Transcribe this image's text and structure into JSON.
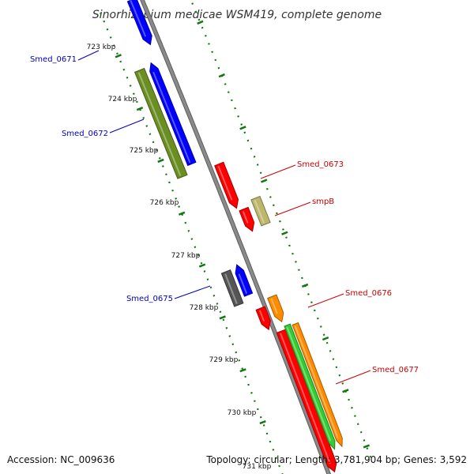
{
  "title": "Sinorhizobium medicae WSM419, complete genome",
  "footer": {
    "accession": "Accession: NC_009636",
    "summary": "Topology: circular; Length: 3,781,904 bp; Genes: 3,592"
  },
  "colors": {
    "backbone": "#8a8a8a",
    "tick": "#117711",
    "forward_label": "#0000bb",
    "reverse_label": "#cc0000"
  },
  "ticks": [
    {
      "label": "723 kbp"
    },
    {
      "label": "724 kbp"
    },
    {
      "label": "725 kbp"
    },
    {
      "label": "726 kbp"
    },
    {
      "label": "727 kbp"
    },
    {
      "label": "728 kbp"
    },
    {
      "label": "729 kbp"
    },
    {
      "label": "730 kbp"
    },
    {
      "label": "731 kbp"
    }
  ],
  "genes": [
    {
      "label": "Smed_0671",
      "strand": "forward",
      "color": "#0000ff"
    },
    {
      "label": "Smed_0672",
      "strand": "forward",
      "color": "#0000ff"
    },
    {
      "label": "",
      "strand": "forward",
      "color": "#6b8e23"
    },
    {
      "label": "Smed_0673",
      "strand": "reverse",
      "color": "#ff0000"
    },
    {
      "label": "",
      "strand": "reverse",
      "color": "#ff0000"
    },
    {
      "label": "smpB",
      "strand": "reverse",
      "color": "#bdb76b"
    },
    {
      "label": "Smed_0675",
      "strand": "forward",
      "color": "#0000ff"
    },
    {
      "label": "",
      "strand": "forward",
      "color": "#555555"
    },
    {
      "label": "",
      "strand": "reverse",
      "color": "#ff0000"
    },
    {
      "label": "Smed_0676",
      "strand": "reverse",
      "color": "#ff8c00"
    },
    {
      "label": "Smed_0677",
      "strand": "reverse",
      "color": "#ff8c00"
    },
    {
      "label": "",
      "strand": "reverse",
      "color": "#ff0000"
    },
    {
      "label": "",
      "strand": "reverse",
      "color": "#33cc33"
    }
  ]
}
